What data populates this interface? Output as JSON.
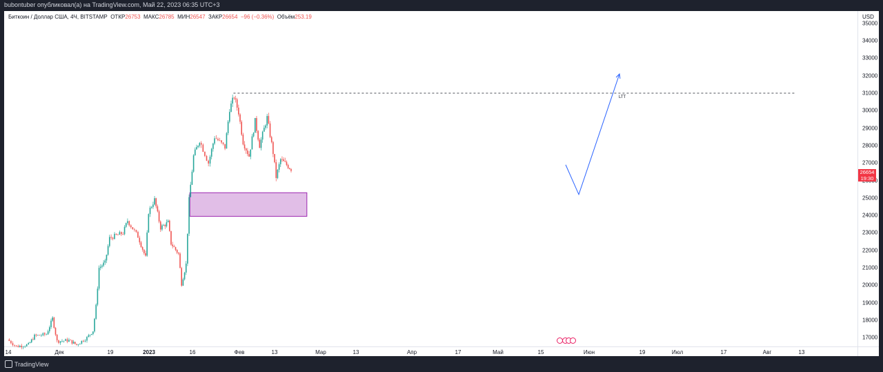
{
  "header": {
    "publisher": "bubontuber опубликовал(а) на TradingView.com, Май 22, 2023 06:35 UTC+3"
  },
  "legend": {
    "symbol": "Биткоин / Доллар США, 4Ч, BITSTAMP",
    "open_label": "ОТКР",
    "open": "26753",
    "high_label": "МАКС",
    "high": "26785",
    "low_label": "МИН",
    "low": "26547",
    "close_label": "ЗАКР",
    "close": "26654",
    "change": "−96 (−0.36%)",
    "volume_label": "Объём",
    "volume": "253.19"
  },
  "price_tag": {
    "price": "26654",
    "countdown": "19:30"
  },
  "level_label": "LTT",
  "footer": {
    "brand": "TradingView"
  },
  "colors": {
    "up": "#26a69a",
    "down": "#ef5350",
    "zone": "#e1bee7",
    "zone_border": "#9c27b0",
    "arrow": "#2962ff"
  },
  "chart_data": {
    "type": "candlestick",
    "symbol": "BTCUSD",
    "timeframe": "4H",
    "currency_label": "USD",
    "y_ticks": [
      "35000",
      "34000",
      "33000",
      "32000",
      "31000",
      "30000",
      "29000",
      "28000",
      "27000",
      "26000",
      "25000",
      "24000",
      "23000",
      "22000",
      "21000",
      "20000",
      "19000",
      "18000",
      "17000"
    ],
    "x_ticks": [
      "14",
      "Дек",
      "19",
      "2023",
      "16",
      "Фев",
      "13",
      "Мар",
      "13",
      "Апр",
      "17",
      "Май",
      "15",
      "Июн",
      "19",
      "Июл",
      "17",
      "Авг",
      "13"
    ],
    "ylim": [
      16500,
      35700
    ],
    "path": [
      {
        "x": "Nov 14",
        "y": 16900
      },
      {
        "x": "Nov 20",
        "y": 16500
      },
      {
        "x": "Nov 28",
        "y": 16600
      },
      {
        "x": "Dec 2",
        "y": 17100
      },
      {
        "x": "Dec 10",
        "y": 17200
      },
      {
        "x": "Dec 14",
        "y": 18100
      },
      {
        "x": "Dec 17",
        "y": 16800
      },
      {
        "x": "Dec 25",
        "y": 16850
      },
      {
        "x": "Dec 30",
        "y": 16600
      },
      {
        "x": "Jan 6",
        "y": 17000
      },
      {
        "x": "Jan 10",
        "y": 17400
      },
      {
        "x": "Jan 12",
        "y": 18800
      },
      {
        "x": "Jan 14",
        "y": 21000
      },
      {
        "x": "Jan 18",
        "y": 21300
      },
      {
        "x": "Jan 21",
        "y": 22700
      },
      {
        "x": "Jan 30",
        "y": 23000
      },
      {
        "x": "Feb 2",
        "y": 23700
      },
      {
        "x": "Feb 9",
        "y": 22800
      },
      {
        "x": "Feb 14",
        "y": 21600
      },
      {
        "x": "Feb 16",
        "y": 24200
      },
      {
        "x": "Feb 20",
        "y": 24900
      },
      {
        "x": "Feb 24",
        "y": 23300
      },
      {
        "x": "Mar 1",
        "y": 23600
      },
      {
        "x": "Mar 3",
        "y": 22400
      },
      {
        "x": "Mar 8",
        "y": 21800
      },
      {
        "x": "Mar 10",
        "y": 20100
      },
      {
        "x": "Mar 13",
        "y": 21200
      },
      {
        "x": "Mar 15",
        "y": 24900
      },
      {
        "x": "Mar 18",
        "y": 27400
      },
      {
        "x": "Mar 22",
        "y": 28300
      },
      {
        "x": "Mar 28",
        "y": 27000
      },
      {
        "x": "Apr 1",
        "y": 28500
      },
      {
        "x": "Apr 8",
        "y": 27900
      },
      {
        "x": "Apr 11",
        "y": 30100
      },
      {
        "x": "Apr 14",
        "y": 30800
      },
      {
        "x": "Apr 17",
        "y": 29900
      },
      {
        "x": "Apr 20",
        "y": 28200
      },
      {
        "x": "Apr 24",
        "y": 27400
      },
      {
        "x": "Apr 28",
        "y": 29400
      },
      {
        "x": "May 1",
        "y": 28000
      },
      {
        "x": "May 6",
        "y": 29600
      },
      {
        "x": "May 10",
        "y": 27600
      },
      {
        "x": "May 12",
        "y": 26200
      },
      {
        "x": "May 15",
        "y": 27200
      },
      {
        "x": "May 19",
        "y": 26900
      },
      {
        "x": "May 22",
        "y": 26654
      }
    ],
    "annotations": {
      "level": {
        "price": 31000,
        "label": "LTT"
      },
      "demand_zone": {
        "from": "Mar 15",
        "to": "Jun 1",
        "low": 23950,
        "high": 25300
      },
      "projection": [
        {
          "x": "May 22",
          "y": 26900
        },
        {
          "x": "May 28",
          "y": 25200
        },
        {
          "x": "Jun 10",
          "y": 32100
        }
      ]
    }
  }
}
